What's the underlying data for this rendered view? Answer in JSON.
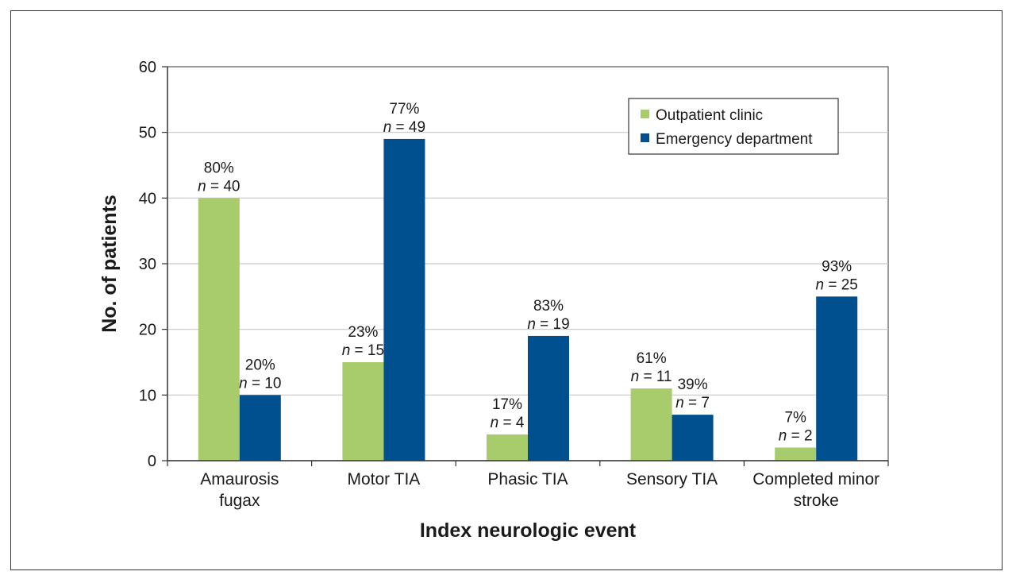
{
  "chart_data": {
    "type": "bar",
    "categories": [
      [
        "Amaurosis",
        "fugax"
      ],
      [
        "Motor TIA"
      ],
      [
        "Phasic TIA"
      ],
      [
        "Sensory TIA"
      ],
      [
        "Completed minor",
        "stroke"
      ]
    ],
    "series": [
      {
        "name": "Outpatient clinic",
        "color": "#a8cb6b",
        "values": [
          40,
          15,
          4,
          11,
          2
        ],
        "percent_labels": [
          "80%",
          "23%",
          "17%",
          "61%",
          "7%"
        ]
      },
      {
        "name": "Emergency department",
        "color": "#00508f",
        "values": [
          10,
          49,
          19,
          7,
          25
        ],
        "percent_labels": [
          "20%",
          "77%",
          "83%",
          "39%",
          "93%"
        ]
      }
    ],
    "xlabel": "Index neurologic event",
    "ylabel": "No. of patients",
    "ylim": [
      0,
      60
    ],
    "yticks": [
      0,
      10,
      20,
      30,
      40,
      50,
      60
    ],
    "grid": true,
    "legend_position": "top-right"
  }
}
